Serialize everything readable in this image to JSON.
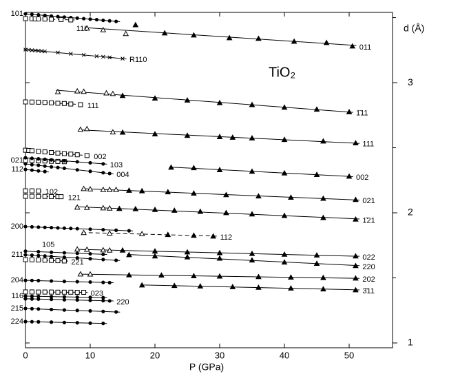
{
  "chart_data": {
    "type": "scatter",
    "annotation": "TiO₂",
    "x_label": "P (GPa)",
    "y_label": "d (Å)",
    "xlim": [
      0,
      56.7
    ],
    "xticks": [
      0,
      10,
      20,
      30,
      40,
      50
    ],
    "ylim": [
      0.963,
      3.54
    ],
    "yticks": [
      1,
      2,
      3
    ],
    "yminor": [
      1.5,
      2.5,
      3.5
    ],
    "color": "#000000",
    "series": [
      {
        "name": "101",
        "marker": "circle",
        "line": "solid",
        "label_side": "left",
        "x": [
          0,
          1,
          2,
          3,
          4,
          5,
          6,
          7,
          8,
          9,
          10,
          11,
          12,
          13,
          14
        ],
        "values": [
          3.529,
          3.525,
          3.521,
          3.517,
          3.512,
          3.508,
          3.504,
          3.5,
          3.496,
          3.492,
          3.488,
          3.484,
          3.479,
          3.475,
          3.471
        ]
      },
      {
        "name": "110",
        "marker": "square",
        "line": "dashed",
        "label_side": "below",
        "x": [
          0,
          1,
          1.5,
          2,
          3,
          4,
          5.5,
          7
        ],
        "values": [
          3.492,
          3.491,
          3.49,
          3.49,
          3.489,
          3.487,
          3.485,
          3.482
        ]
      },
      {
        "name": "011",
        "marker": "triangle",
        "open_count": 3,
        "line": "solid",
        "label_side": "right",
        "x": [
          9.5,
          12,
          15.5,
          17,
          21.5,
          26,
          31.5,
          36,
          41.5,
          46.5,
          50.5
        ],
        "values": [
          3.418,
          3.405,
          3.376,
          3.444,
          3.381,
          3.365,
          3.344,
          3.339,
          3.317,
          3.307,
          3.28
        ]
      },
      {
        "name": "R110",
        "marker": "cross",
        "line": "solid",
        "label_side": "right",
        "x": [
          0,
          0.5,
          1,
          1.5,
          2,
          2.5,
          3,
          5,
          7,
          9,
          11,
          12,
          13,
          15
        ],
        "values": [
          3.254,
          3.252,
          3.249,
          3.247,
          3.245,
          3.243,
          3.24,
          3.231,
          3.222,
          3.213,
          3.203,
          3.199,
          3.194,
          3.185
        ]
      },
      {
        "name": "1̄11",
        "marker": "triangle",
        "open_count": 5,
        "line": "solid",
        "label_side": "right",
        "x": [
          5,
          8,
          9,
          12.5,
          13.5,
          15,
          20,
          25,
          30,
          35,
          40,
          45,
          50
        ],
        "values": [
          2.93,
          2.935,
          2.932,
          2.92,
          2.915,
          2.9,
          2.88,
          2.865,
          2.845,
          2.83,
          2.81,
          2.795,
          2.775
        ]
      },
      {
        "name": "111",
        "marker": "square",
        "line": "dashed",
        "label_side": "right",
        "x": [
          0,
          1,
          2,
          3,
          4,
          5,
          6,
          7,
          8.5
        ],
        "values": [
          2.852,
          2.851,
          2.85,
          2.848,
          2.845,
          2.842,
          2.84,
          2.836,
          2.831
        ]
      },
      {
        "name": "111",
        "marker": "triangle",
        "open_count": 3,
        "line": "solid",
        "label_side": "right",
        "x": [
          8.5,
          9.5,
          13.5,
          15,
          20,
          25,
          30,
          32,
          35,
          40,
          46,
          51
        ],
        "values": [
          2.64,
          2.645,
          2.62,
          2.618,
          2.605,
          2.594,
          2.584,
          2.579,
          2.574,
          2.562,
          2.55,
          2.536
        ]
      },
      {
        "name": "002",
        "marker": "square",
        "line": "dashed",
        "label_side": "right",
        "x": [
          0,
          0.5,
          1,
          2,
          3,
          4,
          5,
          6,
          7,
          8,
          9.5
        ],
        "values": [
          2.481,
          2.479,
          2.477,
          2.472,
          2.468,
          2.463,
          2.459,
          2.455,
          2.451,
          2.446,
          2.44
        ]
      },
      {
        "name": "021",
        "marker": "square",
        "line": "dashed",
        "label_side": "left",
        "x": [
          0,
          1,
          2,
          3,
          4,
          5,
          6
        ],
        "values": [
          2.402,
          2.401,
          2.399,
          2.398,
          2.396,
          2.395,
          2.393
        ]
      },
      {
        "name": "103",
        "marker": "circle",
        "line": "solid",
        "label_side": "right",
        "x": [
          0,
          1,
          2,
          3,
          4,
          6,
          8,
          10,
          12
        ],
        "values": [
          2.423,
          2.419,
          2.415,
          2.411,
          2.407,
          2.4,
          2.392,
          2.384,
          2.376
        ]
      },
      {
        "name": "004",
        "marker": "circle",
        "line": "solid",
        "label_side": "right",
        "x": [
          0,
          1,
          2,
          3,
          4,
          5,
          6,
          8,
          10,
          12,
          13
        ],
        "values": [
          2.376,
          2.37,
          2.365,
          2.359,
          2.353,
          2.348,
          2.342,
          2.33,
          2.319,
          2.308,
          2.302
        ]
      },
      {
        "name": "112",
        "marker": "circle",
        "line": "solid",
        "label_side": "left",
        "x": [
          0,
          1,
          2,
          3
        ],
        "values": [
          2.333,
          2.328,
          2.322,
          2.317
        ]
      },
      {
        "name": "002",
        "marker": "triangle",
        "line": "solid",
        "label_side": "right",
        "x": [
          22.5,
          26,
          30,
          35,
          40,
          45,
          50
        ],
        "values": [
          2.349,
          2.345,
          2.33,
          2.318,
          2.305,
          2.293,
          2.28
        ]
      },
      {
        "name": "102",
        "marker": "square",
        "line": "dashed",
        "label_side": "right",
        "x": [
          0,
          1,
          2
        ],
        "values": [
          2.169,
          2.169,
          2.168
        ]
      },
      {
        "name": "121",
        "marker": "square",
        "line": "dashed",
        "label_side": "right",
        "x": [
          0,
          1,
          2,
          3,
          4,
          5,
          5.5
        ],
        "values": [
          2.127,
          2.127,
          2.126,
          2.126,
          2.125,
          2.124,
          2.124
        ]
      },
      {
        "name": "021",
        "marker": "triangle",
        "open_count": 5,
        "line": "solid",
        "label_side": "right",
        "x": [
          9,
          10,
          12,
          13,
          14,
          16,
          18,
          22,
          26,
          31,
          36,
          41,
          46,
          51
        ],
        "values": [
          2.185,
          2.182,
          2.178,
          2.178,
          2.178,
          2.172,
          2.168,
          2.16,
          2.15,
          2.138,
          2.128,
          2.118,
          2.11,
          2.101
        ]
      },
      {
        "name": "1̄21",
        "marker": "triangle",
        "open_count": 4,
        "line": "solid",
        "label_side": "right",
        "x": [
          8,
          9.5,
          12,
          13,
          14.5,
          17,
          20,
          23,
          27,
          31,
          35,
          40,
          46,
          51
        ],
        "values": [
          2.042,
          2.04,
          2.037,
          2.035,
          2.032,
          2.03,
          2.024,
          2.018,
          2.01,
          2,
          1.99,
          1.978,
          1.962,
          1.95
        ]
      },
      {
        "name": "200",
        "marker": "circle",
        "line": "solid",
        "label_side": "left",
        "x": [
          0,
          1,
          2,
          3,
          4,
          5,
          6,
          7,
          8,
          10,
          12,
          14,
          16
        ],
        "values": [
          1.894,
          1.892,
          1.89,
          1.888,
          1.886,
          1.884,
          1.882,
          1.88,
          1.878,
          1.874,
          1.87,
          1.866,
          1.862
        ]
      },
      {
        "name": "112",
        "marker": "triangle",
        "open_count": 3,
        "line": "dashed",
        "label_side": "right",
        "x": [
          9,
          13,
          18,
          22,
          26,
          29
        ],
        "values": [
          1.847,
          1.843,
          1.838,
          1.832,
          1.826,
          1.82
        ]
      },
      {
        "name": "105",
        "marker": "circle",
        "line": "solid",
        "label_side": "above",
        "x": [
          0,
          2,
          4,
          6,
          8,
          10,
          12
        ],
        "values": [
          1.705,
          1.701,
          1.697,
          1.693,
          1.689,
          1.685,
          1.681
        ]
      },
      {
        "name": "211",
        "marker": "circle",
        "line": "solid",
        "label_side": "left",
        "x": [
          0,
          1,
          2,
          3,
          4,
          6,
          8,
          10,
          12,
          14
        ],
        "values": [
          1.677,
          1.674,
          1.671,
          1.668,
          1.665,
          1.659,
          1.653,
          1.647,
          1.641,
          1.635
        ]
      },
      {
        "name": "221",
        "marker": "square",
        "line": "dashed",
        "label_side": "right",
        "x": [
          0,
          1,
          2,
          3,
          4,
          5,
          6
        ],
        "values": [
          1.64,
          1.639,
          1.638,
          1.636,
          1.634,
          1.632,
          1.63
        ]
      },
      {
        "name": "022",
        "marker": "triangle",
        "open_count": 4,
        "line": "solid",
        "label_side": "right",
        "x": [
          8,
          9.5,
          12,
          13,
          15,
          20,
          25,
          30,
          35,
          40,
          45,
          51
        ],
        "values": [
          1.72,
          1.718,
          1.714,
          1.712,
          1.712,
          1.705,
          1.698,
          1.692,
          1.686,
          1.68,
          1.674,
          1.667
        ]
      },
      {
        "name": "220",
        "marker": "triangle",
        "line": "solid",
        "label_side": "right",
        "x": [
          16,
          20,
          25,
          30,
          35,
          40,
          45,
          51
        ],
        "values": [
          1.677,
          1.667,
          1.66,
          1.65,
          1.636,
          1.62,
          1.61,
          1.593
        ]
      },
      {
        "name": "202",
        "marker": "triangle",
        "open_count": 2,
        "line": "solid",
        "label_side": "right",
        "x": [
          8.5,
          10,
          16,
          21,
          26,
          30,
          36,
          41,
          46,
          51
        ],
        "values": [
          1.529,
          1.528,
          1.522,
          1.52,
          1.515,
          1.512,
          1.508,
          1.504,
          1.501,
          1.497
        ]
      },
      {
        "name": "3̄11",
        "marker": "triangle",
        "line": "solid",
        "label_side": "right",
        "x": [
          18,
          23,
          27,
          32,
          36,
          41,
          46,
          51
        ],
        "values": [
          1.444,
          1.44,
          1.436,
          1.431,
          1.426,
          1.42,
          1.414,
          1.407
        ]
      },
      {
        "name": "204",
        "marker": "circle",
        "line": "solid",
        "label_side": "left",
        "x": [
          0,
          1,
          2,
          4,
          6,
          8,
          10,
          12,
          13
        ],
        "values": [
          1.481,
          1.48,
          1.479,
          1.476,
          1.473,
          1.471,
          1.468,
          1.465,
          1.463
        ]
      },
      {
        "name": "023",
        "marker": "square",
        "line": "dashed",
        "label_side": "right",
        "x": [
          0,
          1,
          2,
          3,
          4,
          5,
          6,
          7,
          8,
          9
        ],
        "values": [
          1.392,
          1.392,
          1.391,
          1.391,
          1.391,
          1.39,
          1.39,
          1.39,
          1.389,
          1.389
        ]
      },
      {
        "name": "116",
        "marker": "circle",
        "line": "solid",
        "label_side": "left",
        "x": [
          0,
          1,
          2,
          4,
          6,
          8,
          10,
          12
        ],
        "values": [
          1.36,
          1.359,
          1.358,
          1.356,
          1.354,
          1.352,
          1.35,
          1.348
        ]
      },
      {
        "name": "220",
        "marker": "circle",
        "line": "solid",
        "label_side": "right",
        "x": [
          0,
          1,
          2,
          4,
          6,
          8,
          10,
          12,
          13
        ],
        "values": [
          1.339,
          1.338,
          1.337,
          1.335,
          1.332,
          1.33,
          1.327,
          1.325,
          1.323
        ]
      },
      {
        "name": "215",
        "marker": "circle",
        "line": "solid",
        "label_side": "left",
        "x": [
          0,
          1,
          2,
          4,
          6,
          8,
          10,
          12,
          14
        ],
        "values": [
          1.265,
          1.263,
          1.261,
          1.257,
          1.253,
          1.25,
          1.246,
          1.242,
          1.238
        ]
      },
      {
        "name": "224",
        "marker": "circle",
        "line": "solid",
        "label_side": "left",
        "x": [
          0,
          1,
          2,
          4,
          6,
          8,
          10,
          12
        ],
        "values": [
          1.164,
          1.163,
          1.162,
          1.16,
          1.157,
          1.155,
          1.152,
          1.15
        ]
      }
    ]
  }
}
